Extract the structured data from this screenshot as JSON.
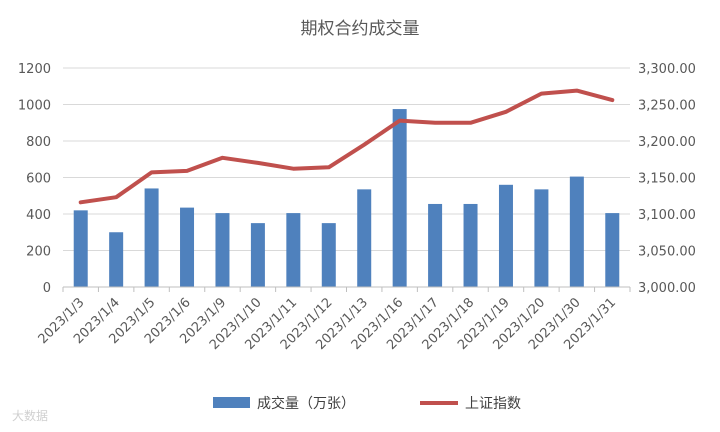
{
  "chart_data": {
    "type": "bar+line",
    "title": "期权合约成交量",
    "categories": [
      "2023/1/3",
      "2023/1/4",
      "2023/1/5",
      "2023/1/6",
      "2023/1/9",
      "2023/1/10",
      "2023/1/11",
      "2023/1/12",
      "2023/1/13",
      "2023/1/16",
      "2023/1/17",
      "2023/1/18",
      "2023/1/19",
      "2023/1/20",
      "2023/1/30",
      "2023/1/31"
    ],
    "series": [
      {
        "name": "成交量（万张）",
        "type": "bar",
        "axis": "left",
        "color": "#4F81BD",
        "values": [
          420,
          300,
          540,
          435,
          405,
          350,
          405,
          350,
          535,
          975,
          455,
          455,
          560,
          535,
          605,
          405
        ]
      },
      {
        "name": "上证指数",
        "type": "line",
        "axis": "right",
        "color": "#C0504D",
        "values": [
          3116,
          3123,
          3157,
          3159,
          3177,
          3170,
          3162,
          3164,
          3195,
          3228,
          3225,
          3225,
          3240,
          3265,
          3269,
          3256
        ]
      }
    ],
    "y_left": {
      "min": 0,
      "max": 1200,
      "step": 200,
      "tick_labels": [
        "0",
        "200",
        "400",
        "600",
        "800",
        "1000",
        "1200"
      ]
    },
    "y_right": {
      "min": 3000,
      "max": 3300,
      "step": 50,
      "tick_labels": [
        "3,000.00",
        "3,050.00",
        "3,100.00",
        "3,150.00",
        "3,200.00",
        "3,250.00",
        "3,300.00"
      ]
    },
    "grid": true,
    "legend": "bottom"
  },
  "watermark": "大数据"
}
